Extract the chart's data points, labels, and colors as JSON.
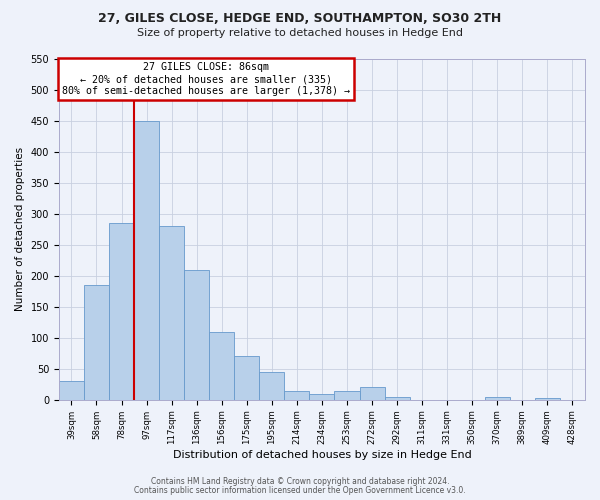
{
  "title": "27, GILES CLOSE, HEDGE END, SOUTHAMPTON, SO30 2TH",
  "subtitle": "Size of property relative to detached houses in Hedge End",
  "xlabel": "Distribution of detached houses by size in Hedge End",
  "ylabel": "Number of detached properties",
  "bar_labels": [
    "39sqm",
    "58sqm",
    "78sqm",
    "97sqm",
    "117sqm",
    "136sqm",
    "156sqm",
    "175sqm",
    "195sqm",
    "214sqm",
    "234sqm",
    "253sqm",
    "272sqm",
    "292sqm",
    "311sqm",
    "331sqm",
    "350sqm",
    "370sqm",
    "389sqm",
    "409sqm",
    "428sqm"
  ],
  "bar_values": [
    30,
    185,
    285,
    450,
    280,
    210,
    110,
    70,
    45,
    15,
    10,
    15,
    20,
    5,
    0,
    0,
    0,
    5,
    0,
    3,
    0
  ],
  "bar_color": "#b8d0ea",
  "bar_edgecolor": "#6699cc",
  "ylim": [
    0,
    550
  ],
  "yticks": [
    0,
    50,
    100,
    150,
    200,
    250,
    300,
    350,
    400,
    450,
    500,
    550
  ],
  "vline_color": "#cc0000",
  "annotation_title": "27 GILES CLOSE: 86sqm",
  "annotation_line1": "← 20% of detached houses are smaller (335)",
  "annotation_line2": "80% of semi-detached houses are larger (1,378) →",
  "annotation_box_edgecolor": "#cc0000",
  "footer1": "Contains HM Land Registry data © Crown copyright and database right 2024.",
  "footer2": "Contains public sector information licensed under the Open Government Licence v3.0.",
  "bg_color": "#eef2fa",
  "grid_color": "#c8d0e0"
}
